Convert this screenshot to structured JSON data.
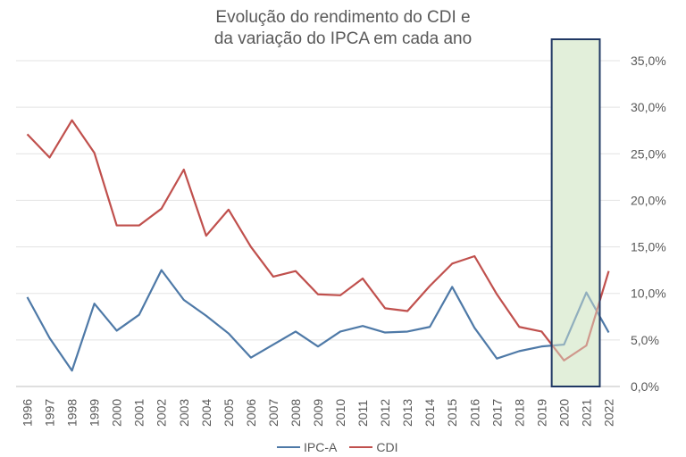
{
  "chart_data": {
    "type": "line",
    "title_lines": [
      "Evolução do rendimento do CDI e",
      "da variação do IPCA em cada ano"
    ],
    "categories": [
      "1996",
      "1997",
      "1998",
      "1999",
      "2000",
      "2001",
      "2002",
      "2003",
      "2004",
      "2005",
      "2006",
      "2007",
      "2008",
      "2009",
      "2010",
      "2011",
      "2012",
      "2013",
      "2014",
      "2015",
      "2016",
      "2017",
      "2018",
      "2019",
      "2020",
      "2021",
      "2022"
    ],
    "series": [
      {
        "name": "IPC-A",
        "color": "#4e79a7",
        "values": [
          9.6,
          5.2,
          1.7,
          8.9,
          6.0,
          7.7,
          12.5,
          9.3,
          7.6,
          5.7,
          3.1,
          4.5,
          5.9,
          4.3,
          5.9,
          6.5,
          5.8,
          5.9,
          6.4,
          10.7,
          6.3,
          3.0,
          3.8,
          4.3,
          4.5,
          10.1,
          5.8
        ]
      },
      {
        "name": "CDI",
        "color": "#c0504d",
        "values": [
          27.1,
          24.6,
          28.6,
          25.1,
          17.3,
          17.3,
          19.1,
          23.3,
          16.2,
          19.0,
          15.0,
          11.8,
          12.4,
          9.9,
          9.8,
          11.6,
          8.4,
          8.1,
          10.8,
          13.2,
          14.0,
          9.9,
          6.4,
          5.9,
          2.8,
          4.4,
          12.4
        ]
      }
    ],
    "y_ticks": [
      "0,0%",
      "5,0%",
      "10,0%",
      "15,0%",
      "20,0%",
      "25,0%",
      "30,0%",
      "35,0%"
    ],
    "ylim": [
      0,
      35
    ],
    "y_axis_side": "right",
    "x_tick_rotation": "vertical",
    "highlight": {
      "from": "2020",
      "to": "2021",
      "fill": "#e2efda",
      "border": "#203864"
    },
    "legend_position": "bottom",
    "grid": true
  }
}
